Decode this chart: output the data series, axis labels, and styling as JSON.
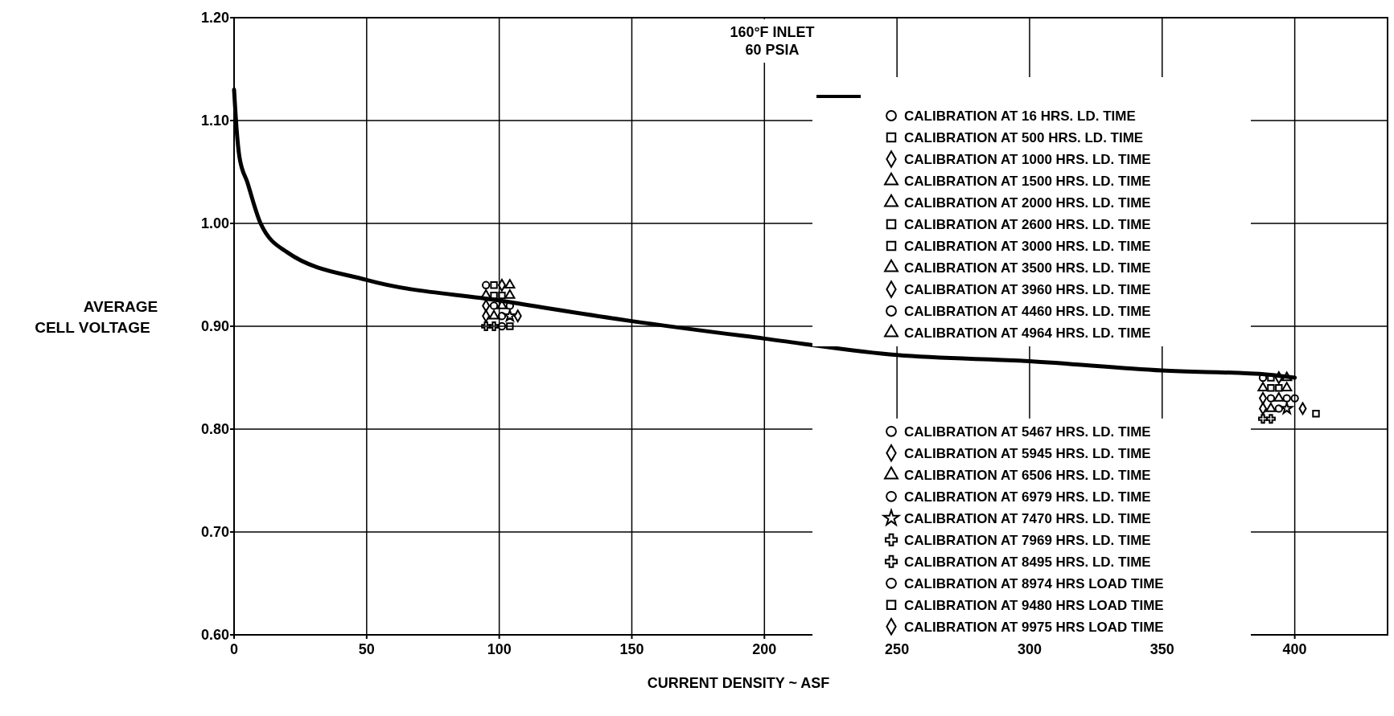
{
  "chart_data": {
    "type": "scatter",
    "xlabel": "CURRENT DENSITY ~ ASF",
    "ylabel": "AVERAGE CELL VOLTAGE",
    "xlim": [
      0,
      435
    ],
    "ylim": [
      0.6,
      1.2
    ],
    "xticks": [
      0,
      50,
      100,
      150,
      200,
      250,
      300,
      350,
      400
    ],
    "yticks": [
      {
        "value": 0.6,
        "label": "0.60"
      },
      {
        "value": 0.7,
        "label": "0.70"
      },
      {
        "value": 0.8,
        "label": "0.80"
      },
      {
        "value": 0.9,
        "label": "0.90"
      },
      {
        "value": 1.0,
        "label": "1.00"
      },
      {
        "value": 1.1,
        "label": "1.10"
      },
      {
        "value": 1.2,
        "label": "1.20"
      }
    ],
    "grid": true,
    "legend": "right",
    "annotations": [
      "160°F INLET",
      "60 PSIA"
    ],
    "series": [
      {
        "type": "line",
        "color": "#000000",
        "line_style": "solid",
        "marker": "none",
        "x": [
          0,
          1,
          2,
          5,
          10,
          20,
          50,
          100,
          150,
          200,
          250,
          300,
          350,
          390,
          400
        ],
        "values": [
          1.13,
          1.09,
          1.065,
          1.04,
          1.0,
          0.972,
          0.945,
          0.925,
          0.905,
          0.888,
          0.872,
          0.866,
          0.857,
          0.853,
          0.85
        ]
      },
      {
        "name": "CALIBRATION AT 16 HRS. LD. TIME",
        "color": "#000000",
        "marker": "circle",
        "x": [
          95,
          388
        ],
        "values": [
          0.94,
          0.85
        ]
      },
      {
        "name": "CALIBRATION AT 500 HRS. LD. TIME",
        "color": "#000000",
        "marker": "square",
        "x": [
          98,
          391
        ],
        "values": [
          0.94,
          0.85
        ]
      },
      {
        "name": "CALIBRATION AT 1000 HRS. LD. TIME",
        "color": "#000000",
        "marker": "diamond",
        "x": [
          101,
          394
        ],
        "values": [
          0.94,
          0.85
        ]
      },
      {
        "name": "CALIBRATION AT 1500 HRS. LD. TIME",
        "color": "#000000",
        "marker": "triangle",
        "x": [
          104,
          397
        ],
        "values": [
          0.94,
          0.85
        ]
      },
      {
        "name": "CALIBRATION AT 2000 HRS. LD. TIME",
        "color": "#000000",
        "marker": "triangle",
        "x": [
          95,
          388
        ],
        "values": [
          0.93,
          0.84
        ]
      },
      {
        "name": "CALIBRATION AT 2600 HRS. LD. TIME",
        "color": "#000000",
        "marker": "square",
        "x": [
          98,
          391
        ],
        "values": [
          0.93,
          0.84
        ]
      },
      {
        "name": "CALIBRATION AT 3000 HRS. LD. TIME",
        "color": "#000000",
        "marker": "square",
        "x": [
          101,
          394
        ],
        "values": [
          0.93,
          0.84
        ]
      },
      {
        "name": "CALIBRATION AT 3500 HRS. LD. TIME",
        "color": "#000000",
        "marker": "triangle",
        "x": [
          104,
          397
        ],
        "values": [
          0.93,
          0.84
        ]
      },
      {
        "name": "CALIBRATION AT 3960 HRS. LD. TIME",
        "color": "#000000",
        "marker": "diamond",
        "x": [
          95,
          388
        ],
        "values": [
          0.92,
          0.83
        ]
      },
      {
        "name": "CALIBRATION AT 4460 HRS. LD. TIME",
        "color": "#000000",
        "marker": "circle",
        "x": [
          98,
          391
        ],
        "values": [
          0.92,
          0.83
        ]
      },
      {
        "name": "CALIBRATION AT 4964 HRS. LD. TIME",
        "color": "#000000",
        "marker": "triangle",
        "x": [
          101,
          394
        ],
        "values": [
          0.92,
          0.83
        ]
      },
      {
        "name": "CALIBRATION AT 5467 HRS. LD. TIME",
        "color": "#000000",
        "marker": "circle",
        "x": [
          104,
          397
        ],
        "values": [
          0.92,
          0.83
        ]
      },
      {
        "name": "CALIBRATION AT 5945 HRS. LD. TIME",
        "color": "#000000",
        "marker": "diamond",
        "x": [
          95,
          388
        ],
        "values": [
          0.91,
          0.82
        ]
      },
      {
        "name": "CALIBRATION AT 6506 HRS. LD. TIME",
        "color": "#000000",
        "marker": "triangle",
        "x": [
          98,
          391
        ],
        "values": [
          0.91,
          0.82
        ]
      },
      {
        "name": "CALIBRATION AT 6979 HRS. LD. TIME",
        "color": "#000000",
        "marker": "circle",
        "x": [
          101,
          394
        ],
        "values": [
          0.91,
          0.82
        ]
      },
      {
        "name": "CALIBRATION AT 7470 HRS. LD. TIME",
        "color": "#000000",
        "marker": "star",
        "x": [
          104,
          397
        ],
        "values": [
          0.91,
          0.82
        ]
      },
      {
        "name": "CALIBRATION AT 7969 HRS. LD. TIME",
        "color": "#000000",
        "marker": "cross",
        "x": [
          95,
          388
        ],
        "values": [
          0.9,
          0.81
        ]
      },
      {
        "name": "CALIBRATION AT 8495 HRS. LD. TIME",
        "color": "#000000",
        "marker": "cross",
        "x": [
          98,
          391
        ],
        "values": [
          0.9,
          0.81
        ]
      },
      {
        "name": "CALIBRATION AT 8974 HRS LOAD TIME",
        "color": "#000000",
        "marker": "circle",
        "x": [
          101,
          400
        ],
        "values": [
          0.9,
          0.83
        ]
      },
      {
        "name": "CALIBRATION AT 9480 HRS LOAD TIME",
        "color": "#000000",
        "marker": "square",
        "x": [
          104,
          408
        ],
        "values": [
          0.9,
          0.815
        ]
      },
      {
        "name": "CALIBRATION AT 9975 HRS LOAD TIME",
        "color": "#000000",
        "marker": "diamond",
        "x": [
          107,
          403
        ],
        "values": [
          0.91,
          0.82
        ]
      }
    ]
  }
}
